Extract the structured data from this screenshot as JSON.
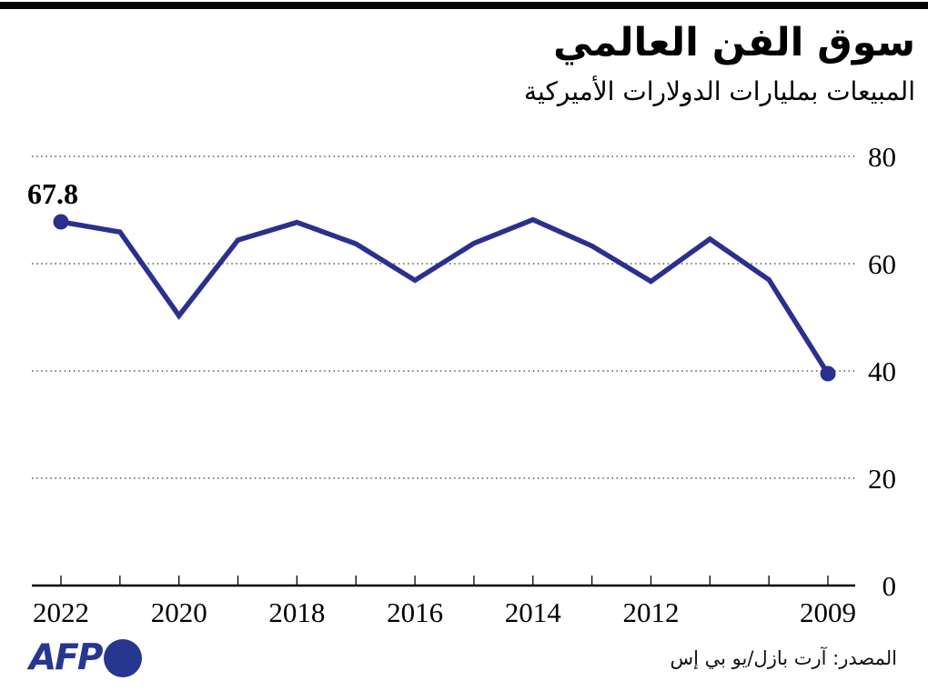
{
  "meta": {
    "line_color": "#2b2f8e",
    "logo_color": "#27368f",
    "grid_color": "#555555",
    "axis_color": "#000000",
    "bar_color": "#000000"
  },
  "header": {
    "title": "سوق الفن العالمي",
    "subtitle": "المبيعات بمليارات الدولارات الأميركية"
  },
  "chart_data": {
    "type": "line",
    "title": "سوق الفن العالمي",
    "subtitle": "المبيعات بمليارات الدولارات الأميركية",
    "x": [
      2022,
      2021,
      2020,
      2019,
      2018,
      2017,
      2016,
      2015,
      2014,
      2013,
      2012,
      2011,
      2010,
      2009
    ],
    "values": [
      67.8,
      65.9,
      50.3,
      64.4,
      67.7,
      63.7,
      56.9,
      63.8,
      68.2,
      63.3,
      56.7,
      64.6,
      57.0,
      39.5
    ],
    "x_axis_reversed": true,
    "x_tick_labels": [
      "2022",
      "2020",
      "2018",
      "2016",
      "2014",
      "2012",
      "2009"
    ],
    "y_ticks": [
      0,
      20,
      40,
      60,
      80
    ],
    "y_tick_labels": [
      "0",
      "20",
      "40",
      "60",
      "80"
    ],
    "ylim": [
      0,
      80
    ],
    "grid": "horizontal-dotted",
    "legend": "none",
    "line_color": "#2b2f8e",
    "marker_years": [
      2022,
      2009
    ],
    "annotation": {
      "text": "67.8",
      "year": 2022
    }
  },
  "footer": {
    "logo_text": "AFP",
    "source": "المصدر: آرت بازل/يو بي إس"
  }
}
